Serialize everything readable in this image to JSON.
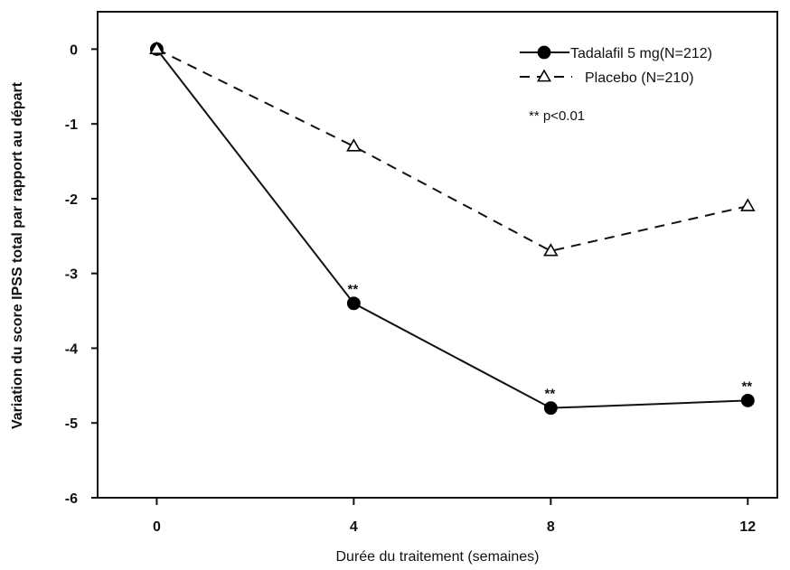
{
  "chart_data": {
    "type": "line",
    "title": "",
    "xlabel": "Durée du traitement (semaines)",
    "ylabel": "Variation du score IPSS total par rapport au départ",
    "x": [
      0,
      4,
      8,
      12
    ],
    "x_tick_labels": [
      "0",
      "4",
      "8",
      "12"
    ],
    "y_tick_labels": [
      "0",
      "-1",
      "-2",
      "-3",
      "-4",
      "-5",
      "-6"
    ],
    "xlim": [
      -1.2,
      12.6
    ],
    "ylim": [
      -6,
      0.5
    ],
    "grid": false,
    "legend_position": "top-right",
    "series": [
      {
        "name": "Tadalafil 5 mg(N=212)",
        "values": [
          0,
          -3.4,
          -4.8,
          -4.7
        ],
        "line_style": "solid",
        "marker": "filled-circle",
        "color": "#000000"
      },
      {
        "name": "Placebo (N=210)",
        "values": [
          0,
          -1.3,
          -2.7,
          -2.1
        ],
        "line_style": "dashed",
        "marker": "open-triangle",
        "color": "#000000"
      }
    ],
    "significance_labels": [
      "**",
      "**",
      "**"
    ],
    "significance_points": [
      {
        "x": 4,
        "y": -3.4
      },
      {
        "x": 8,
        "y": -4.8
      },
      {
        "x": 12,
        "y": -4.7
      }
    ],
    "annotation": "** p<0.01"
  }
}
